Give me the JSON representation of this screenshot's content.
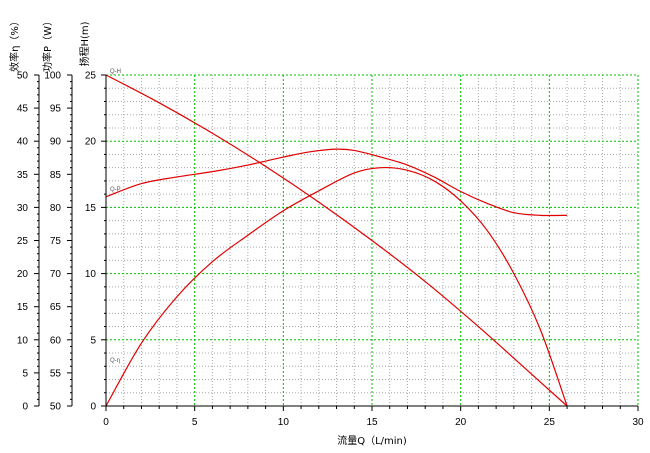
{
  "chart_data": {
    "type": "line",
    "xlabel": "流量Q（L/min)",
    "x_range": [
      0,
      30
    ],
    "x_ticks": [
      0,
      5,
      10,
      15,
      20,
      25,
      30
    ],
    "axes": [
      {
        "id": "eff",
        "label": "效率η（%）",
        "range": [
          0,
          50
        ],
        "ticks": [
          0,
          5,
          10,
          15,
          20,
          25,
          30,
          35,
          40,
          45,
          50
        ]
      },
      {
        "id": "power",
        "label": "功率P（W）",
        "range": [
          50,
          100
        ],
        "ticks": [
          50,
          55,
          60,
          65,
          70,
          75,
          80,
          85,
          90,
          95,
          100
        ]
      },
      {
        "id": "head",
        "label": "扬程H(m)",
        "range": [
          0,
          25
        ],
        "ticks": [
          0,
          5,
          10,
          15,
          20,
          25
        ]
      }
    ],
    "grid": true,
    "series": [
      {
        "name": "Q-H",
        "axis": "head",
        "color": "#e00000",
        "points": [
          [
            0,
            25
          ],
          [
            3,
            22.9
          ],
          [
            6,
            20.6
          ],
          [
            9,
            18.1
          ],
          [
            12,
            15.4
          ],
          [
            15,
            12.5
          ],
          [
            18,
            9.4
          ],
          [
            21,
            6.0
          ],
          [
            24,
            2.4
          ],
          [
            26,
            0
          ]
        ]
      },
      {
        "name": "Q-P",
        "axis": "power",
        "color": "#e00000",
        "points": [
          [
            0,
            81.6
          ],
          [
            2,
            83.6
          ],
          [
            4,
            84.6
          ],
          [
            6,
            85.4
          ],
          [
            8,
            86.4
          ],
          [
            10,
            87.6
          ],
          [
            11.5,
            88.4
          ],
          [
            13,
            88.8
          ],
          [
            14,
            88.6
          ],
          [
            15.5,
            87.6
          ],
          [
            17,
            86.4
          ],
          [
            18.5,
            84.6
          ],
          [
            20,
            82.4
          ],
          [
            21.5,
            80.6
          ],
          [
            23,
            79.2
          ],
          [
            24.5,
            78.8
          ],
          [
            26,
            78.8
          ]
        ]
      },
      {
        "name": "Q-η",
        "axis": "eff",
        "color": "#e00000",
        "points": [
          [
            0,
            0
          ],
          [
            2,
            9.5
          ],
          [
            4,
            16.5
          ],
          [
            6,
            21.8
          ],
          [
            8,
            25.8
          ],
          [
            10,
            29.5
          ],
          [
            12,
            32.5
          ],
          [
            14,
            35.2
          ],
          [
            15.5,
            36.0
          ],
          [
            17,
            35.6
          ],
          [
            18.5,
            34.0
          ],
          [
            20,
            31.0
          ],
          [
            21.5,
            26.5
          ],
          [
            23,
            20.0
          ],
          [
            24.5,
            11.5
          ],
          [
            26,
            0
          ]
        ]
      }
    ]
  },
  "colors": {
    "major_grid": "#00c000",
    "minor_grid": "#a8a8a8",
    "curve": "#e00000"
  }
}
